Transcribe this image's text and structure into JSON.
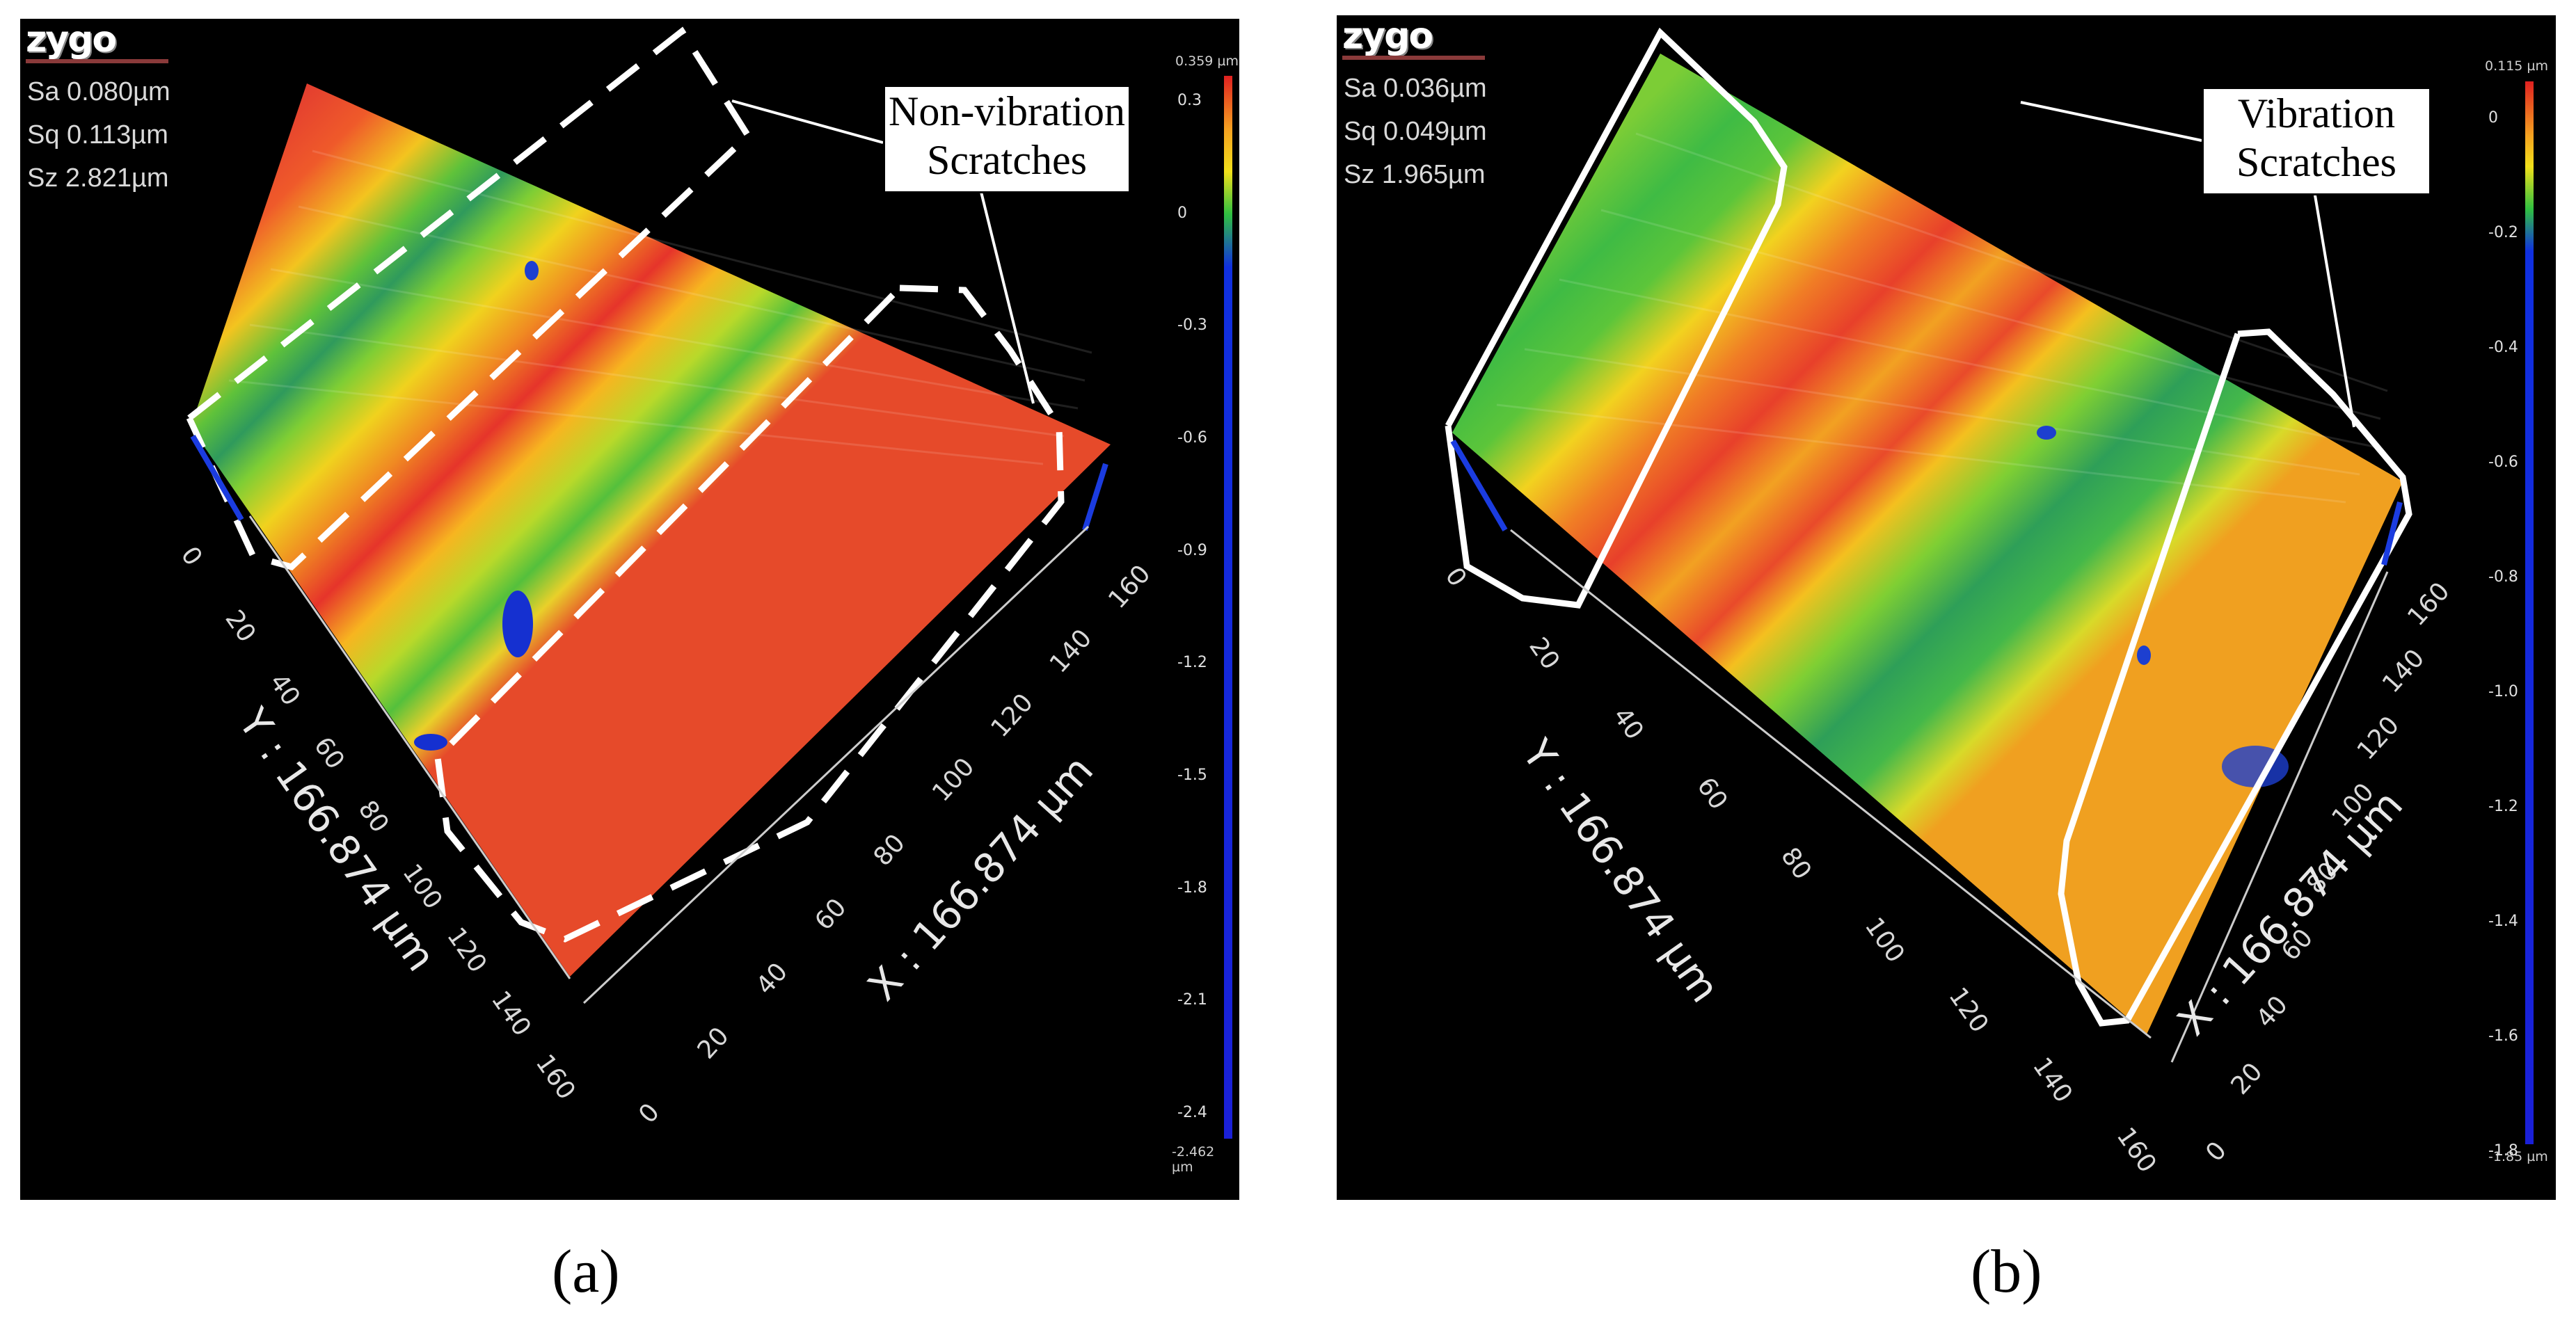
{
  "panels": [
    {
      "id": "a",
      "caption": "(a)",
      "logo": "zygo",
      "stats": {
        "sa": "Sa 0.080µm",
        "sq": "Sq 0.113µm",
        "sz": "Sz 2.821µm"
      },
      "callout": {
        "line1": "Non-vibration",
        "line2": "Scratches"
      },
      "colorbar": {
        "max_label": "0.359 µm",
        "min_label": "-2.462 µm",
        "ticks": [
          "0.3",
          "0",
          "-0.3",
          "-0.6",
          "-0.9",
          "-1.2",
          "-1.5",
          "-1.8",
          "-2.1",
          "-2.4"
        ]
      },
      "axes": {
        "x_label": "X : 166.874 µm",
        "y_label": "Y : 166.874 µm",
        "x_ticks": [
          "0",
          "20",
          "40",
          "60",
          "80",
          "100",
          "120",
          "140",
          "160"
        ],
        "y_ticks": [
          "0",
          "20",
          "40",
          "60",
          "80",
          "100",
          "120",
          "140",
          "160"
        ]
      },
      "outline_style": "dashed"
    },
    {
      "id": "b",
      "caption": "(b)",
      "logo": "zygo",
      "stats": {
        "sa": "Sa 0.036µm",
        "sq": "Sq 0.049µm",
        "sz": "Sz 1.965µm"
      },
      "callout": {
        "line1": "Vibration",
        "line2": "Scratches"
      },
      "colorbar": {
        "max_label": "0.115 µm",
        "min_label": "-1.85 µm",
        "ticks": [
          "0",
          "-0.2",
          "-0.4",
          "-0.6",
          "-0.8",
          "-1.0",
          "-1.2",
          "-1.4",
          "-1.6",
          "-1.8"
        ]
      },
      "axes": {
        "x_label": "X : 166.874 µm",
        "y_label": "Y : 166.874 µm",
        "x_ticks": [
          "0",
          "20",
          "40",
          "60",
          "80",
          "100",
          "120",
          "140",
          "160"
        ],
        "y_ticks": [
          "0",
          "20",
          "40",
          "60",
          "80",
          "100",
          "120",
          "140",
          "160"
        ]
      },
      "outline_style": "solid"
    }
  ],
  "colors": {
    "background": "#000000",
    "high": "#e8372a",
    "mid": "#f7c21a",
    "low": "#2f4fd6",
    "green": "#3fbf3a",
    "outline": "#ffffff"
  }
}
